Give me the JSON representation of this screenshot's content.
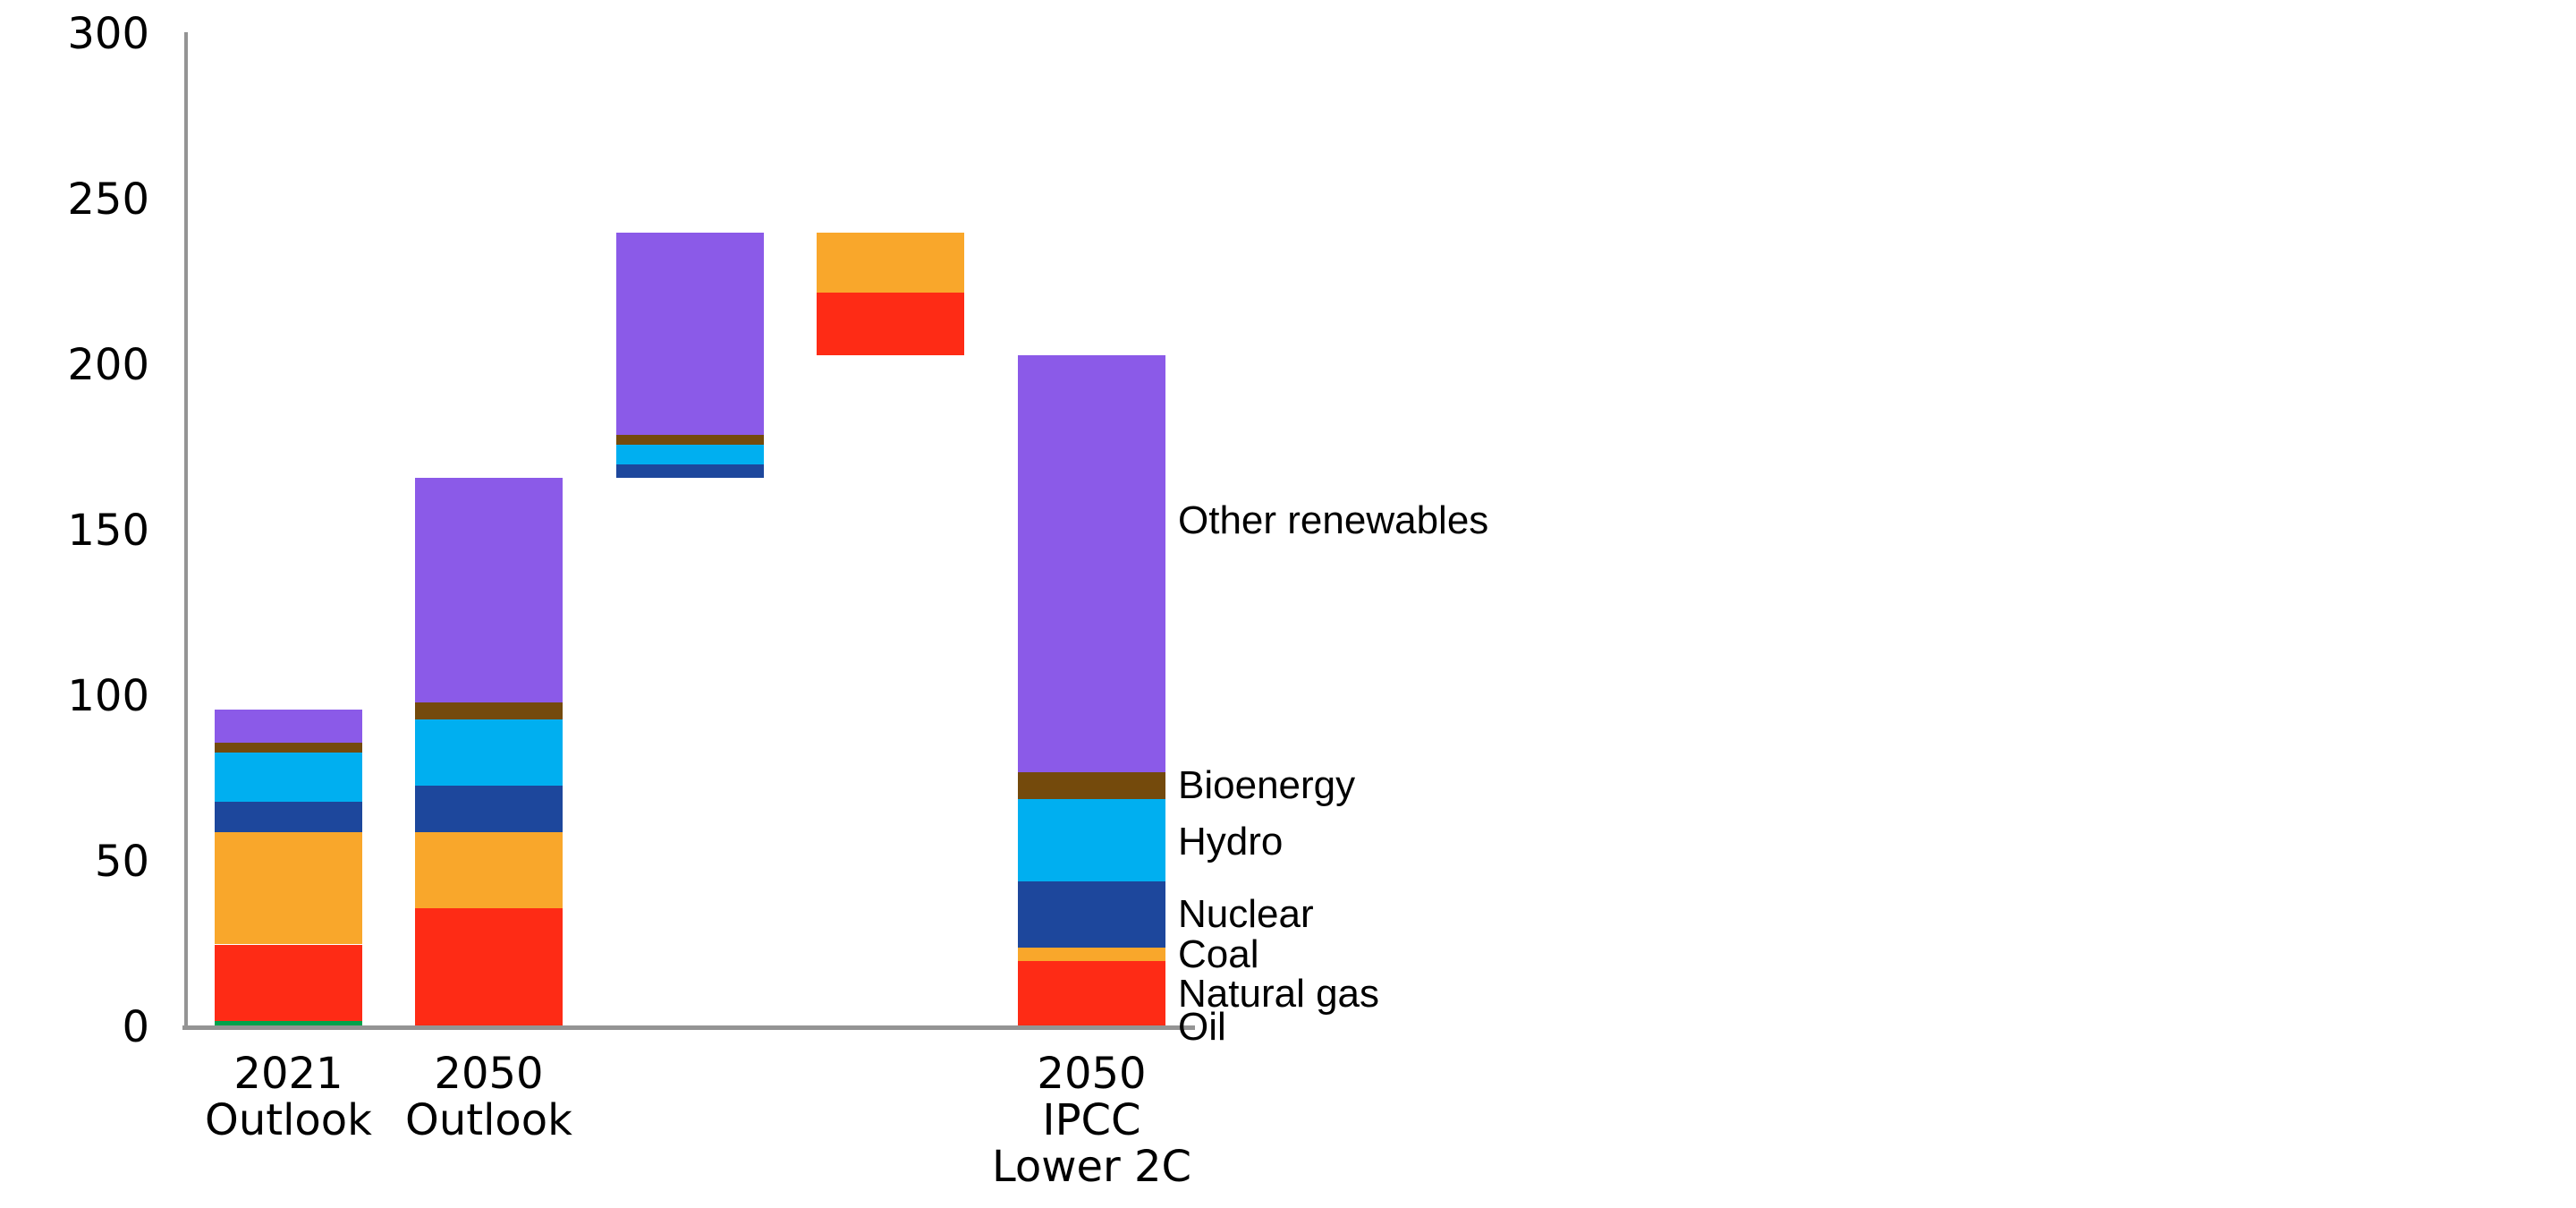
{
  "figure": {
    "background": "#ffffff",
    "axis_color": "#949494",
    "text_color": "#000000"
  },
  "chart_data": {
    "type": "bar",
    "subtype": "stacked-waterfall",
    "title": "",
    "xlabel": "",
    "ylabel": "",
    "ylim": [
      0,
      300
    ],
    "yticks": [
      0,
      50,
      100,
      150,
      200,
      250,
      300
    ],
    "grid": false,
    "legend_position": "right-inline",
    "series_order_bottom_to_top": [
      "Oil",
      "Natural gas",
      "Coal",
      "Nuclear",
      "Hydro",
      "Bioenergy",
      "Other renewables"
    ],
    "series_colors": {
      "Oil": "#00a14b",
      "Natural gas": "#fe2b15",
      "Coal": "#f9a72b",
      "Nuclear": "#1d479c",
      "Hydro": "#00aff0",
      "Bioenergy": "#744a0c",
      "Other renewables": "#8b5ae8"
    },
    "bars": [
      {
        "id": "2021-outlook",
        "label_lines": [
          "2021",
          "Outlook"
        ],
        "base": 0,
        "total_top": 96,
        "segments": [
          {
            "name": "Oil",
            "value": 2
          },
          {
            "name": "Natural gas",
            "value": 23
          },
          {
            "name": "Coal",
            "value": 34
          },
          {
            "name": "Nuclear",
            "value": 9
          },
          {
            "name": "Hydro",
            "value": 15
          },
          {
            "name": "Bioenergy",
            "value": 3
          },
          {
            "name": "Other renewables",
            "value": 10
          }
        ]
      },
      {
        "id": "2050-outlook",
        "label_lines": [
          "2050",
          "Outlook"
        ],
        "base": 0,
        "total_top": 166,
        "segments": [
          {
            "name": "Natural gas",
            "value": 36
          },
          {
            "name": "Coal",
            "value": 23
          },
          {
            "name": "Nuclear",
            "value": 14
          },
          {
            "name": "Hydro",
            "value": 20
          },
          {
            "name": "Bioenergy",
            "value": 5
          },
          {
            "name": "Other renewables",
            "value": 68
          }
        ]
      },
      {
        "id": "low-carbon-additions",
        "label_lines": [],
        "base": 166,
        "total_top": 240,
        "segments": [
          {
            "name": "Nuclear",
            "value": 4
          },
          {
            "name": "Hydro",
            "value": 6
          },
          {
            "name": "Bioenergy",
            "value": 3
          },
          {
            "name": "Other renewables",
            "value": 61
          }
        ]
      },
      {
        "id": "fossil-reductions",
        "label_lines": [],
        "base": 203,
        "total_top": 240,
        "segments": [
          {
            "name": "Natural gas",
            "value": 19
          },
          {
            "name": "Coal",
            "value": 18
          }
        ]
      },
      {
        "id": "2050-ipcc-lower-2c",
        "label_lines": [
          "2050",
          "IPCC",
          "Lower 2C"
        ],
        "base": 0,
        "total_top": 203,
        "segments": [
          {
            "name": "Natural gas",
            "value": 20
          },
          {
            "name": "Coal",
            "value": 4
          },
          {
            "name": "Nuclear",
            "value": 20
          },
          {
            "name": "Hydro",
            "value": 25
          },
          {
            "name": "Bioenergy",
            "value": 8
          },
          {
            "name": "Other renewables",
            "value": 126
          }
        ]
      }
    ],
    "series_labels": [
      {
        "text": "Other renewables",
        "anchor_value": 153
      },
      {
        "text": "Bioenergy",
        "anchor_value": 73
      },
      {
        "text": "Hydro",
        "anchor_value": 56
      },
      {
        "text": "Nuclear",
        "anchor_value": 34
      },
      {
        "text": "Coal",
        "anchor_value": 22
      },
      {
        "text": "Natural gas",
        "anchor_value": 10
      },
      {
        "text": "Oil",
        "anchor_value": 0
      }
    ]
  }
}
